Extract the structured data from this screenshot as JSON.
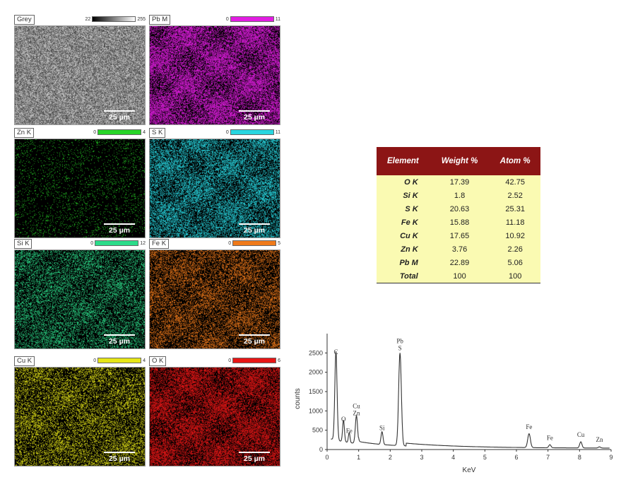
{
  "maps": [
    {
      "label": "Grey",
      "min": "22",
      "max": "255",
      "color": "#888888",
      "scale_bar": "25 µm"
    },
    {
      "label": "Pb M",
      "min": "0",
      "max": "11",
      "color": "#e21de2",
      "scale_bar": "25 µm"
    },
    {
      "label": "Zn K",
      "min": "0",
      "max": "4",
      "color": "#27d427",
      "scale_bar": "25 µm"
    },
    {
      "label": "S K",
      "min": "0",
      "max": "11",
      "color": "#28d6e0",
      "scale_bar": "25 µm"
    },
    {
      "label": "Si K",
      "min": "0",
      "max": "12",
      "color": "#2cdc8a",
      "scale_bar": "25 µm"
    },
    {
      "label": "Fe K",
      "min": "0",
      "max": "5",
      "color": "#f07a1a",
      "scale_bar": "25 µm"
    },
    {
      "label": "Cu K",
      "min": "0",
      "max": "4",
      "color": "#e6e617",
      "scale_bar": "25 µm"
    },
    {
      "label": "O K",
      "min": "0",
      "max": "6",
      "color": "#e81616",
      "scale_bar": "25 µm"
    }
  ],
  "table": {
    "headers": [
      "Element",
      "Weight %",
      "Atom %"
    ],
    "rows": [
      [
        "O K",
        "17.39",
        "42.75"
      ],
      [
        "Si K",
        "1.8",
        "2.52"
      ],
      [
        "S K",
        "20.63",
        "25.31"
      ],
      [
        "Fe K",
        "15.88",
        "11.18"
      ],
      [
        "Cu K",
        "17.65",
        "10.92"
      ],
      [
        "Zn K",
        "3.76",
        "2.26"
      ],
      [
        "Pb M",
        "22.89",
        "5.06"
      ],
      [
        "Total",
        "100",
        "100"
      ]
    ]
  },
  "chart_data": {
    "type": "line",
    "xlabel": "KeV",
    "ylabel": "counts",
    "xlim": [
      0,
      9
    ],
    "ylim": [
      0,
      3000
    ],
    "x_ticks": [
      0,
      1,
      2,
      3,
      4,
      5,
      6,
      7,
      8,
      9
    ],
    "y_ticks": [
      0,
      500,
      1000,
      1500,
      2000,
      2500
    ],
    "peaks": [
      {
        "label": "C",
        "x": 0.28,
        "y": 2300
      },
      {
        "label": "O",
        "x": 0.52,
        "y": 560
      },
      {
        "label": "Fe",
        "x": 0.7,
        "y": 260
      },
      {
        "label": "Cu\nZn",
        "x": 0.93,
        "y": 720
      },
      {
        "label": "Si",
        "x": 1.74,
        "y": 330
      },
      {
        "label": "Pb\nS",
        "x": 2.31,
        "y": 2400
      },
      {
        "label": "Fe",
        "x": 6.4,
        "y": 360
      },
      {
        "label": "Fe",
        "x": 7.06,
        "y": 80
      },
      {
        "label": "Cu",
        "x": 8.04,
        "y": 160
      },
      {
        "label": "Zn",
        "x": 8.63,
        "y": 30
      }
    ]
  }
}
